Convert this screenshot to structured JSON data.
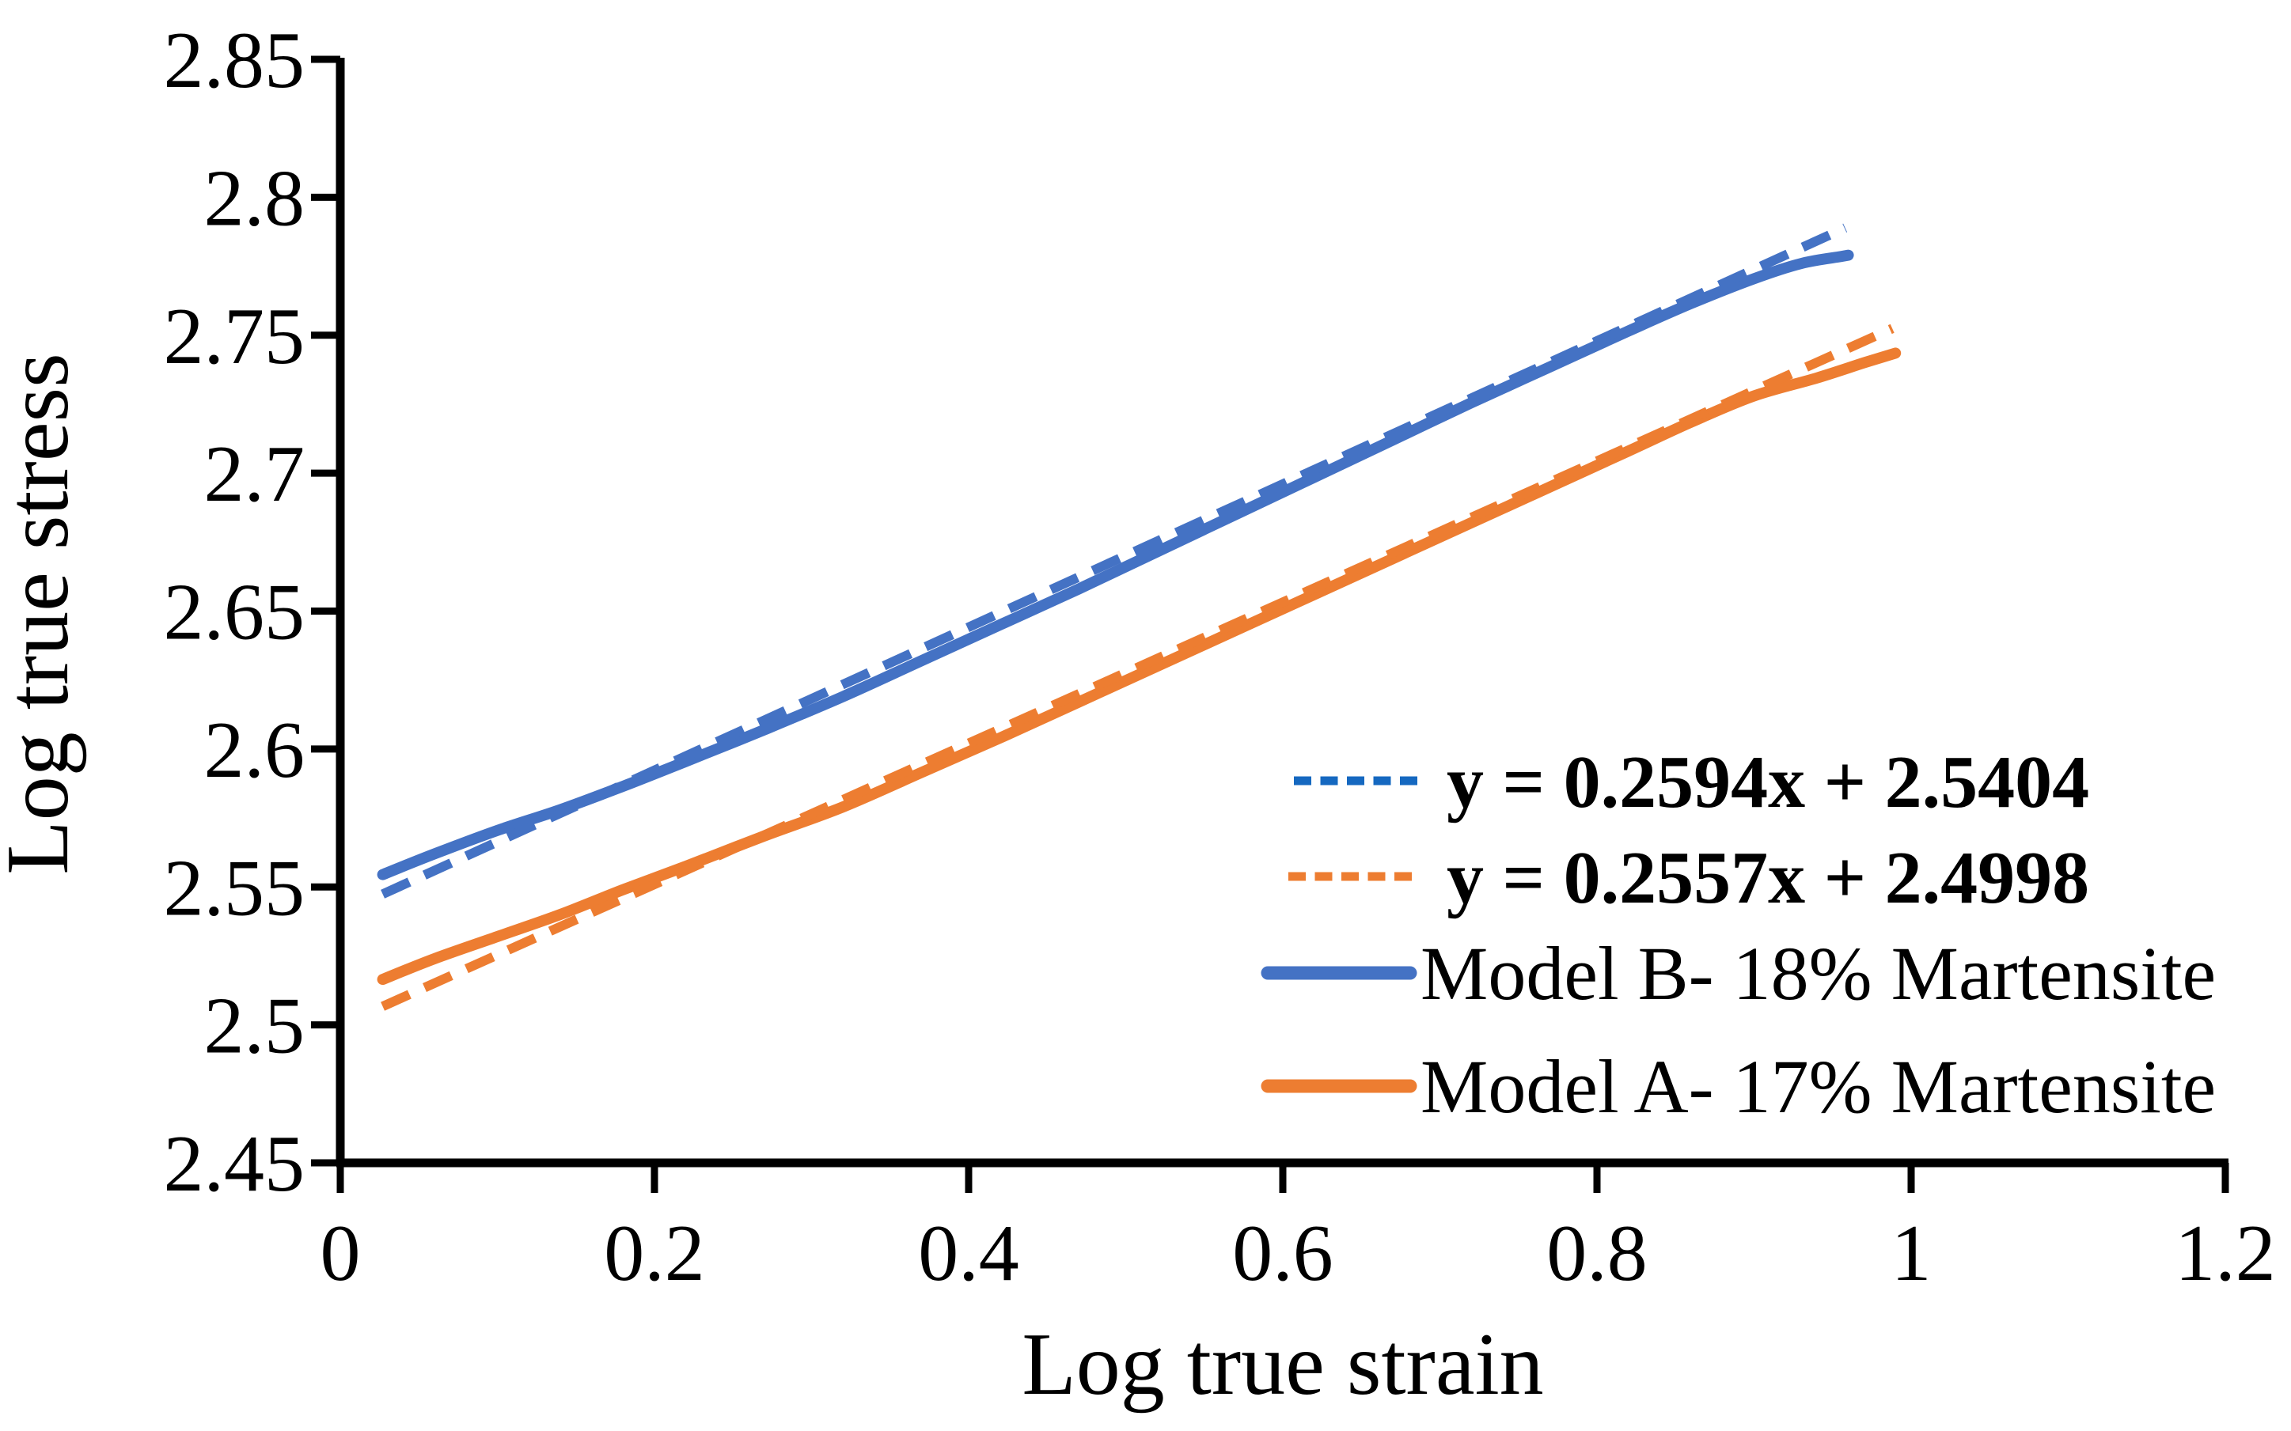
{
  "chart_data": {
    "type": "line",
    "title": "",
    "xlabel": "Log true strain",
    "ylabel": "Log true stress",
    "xlim": [
      0,
      1.2
    ],
    "ylim": [
      2.45,
      2.85
    ],
    "grid": false,
    "legend_position": "inside-lower-right",
    "x_ticks": [
      {
        "value": 0,
        "label": "0"
      },
      {
        "value": 0.2,
        "label": "0.2"
      },
      {
        "value": 0.4,
        "label": "0.4"
      },
      {
        "value": 0.6,
        "label": "0.6"
      },
      {
        "value": 0.8,
        "label": "0.8"
      },
      {
        "value": 1,
        "label": "1"
      },
      {
        "value": 1.2,
        "label": "1.2"
      }
    ],
    "y_ticks": [
      {
        "value": 2.45,
        "label": "2.45"
      },
      {
        "value": 2.5,
        "label": "2.5"
      },
      {
        "value": 2.55,
        "label": "2.55"
      },
      {
        "value": 2.6,
        "label": "2.6"
      },
      {
        "value": 2.65,
        "label": "2.65"
      },
      {
        "value": 2.7,
        "label": "2.7"
      },
      {
        "value": 2.75,
        "label": "2.75"
      },
      {
        "value": 2.8,
        "label": "2.8"
      },
      {
        "value": 2.85,
        "label": "2.85"
      }
    ],
    "series": [
      {
        "name": "Model B- 18% Martensite",
        "style": "solid",
        "color": "#4472C4",
        "points": [
          [
            0.027,
            2.5545
          ],
          [
            0.06,
            2.562
          ],
          [
            0.1,
            2.5705
          ],
          [
            0.14,
            2.578
          ],
          [
            0.18,
            2.5865
          ],
          [
            0.22,
            2.5955
          ],
          [
            0.27,
            2.607
          ],
          [
            0.32,
            2.619
          ],
          [
            0.37,
            2.632
          ],
          [
            0.42,
            2.645
          ],
          [
            0.47,
            2.658
          ],
          [
            0.52,
            2.6715
          ],
          [
            0.57,
            2.685
          ],
          [
            0.62,
            2.6985
          ],
          [
            0.67,
            2.712
          ],
          [
            0.72,
            2.7255
          ],
          [
            0.77,
            2.7385
          ],
          [
            0.82,
            2.7515
          ],
          [
            0.86,
            2.7615
          ],
          [
            0.9,
            2.7705
          ],
          [
            0.93,
            2.776
          ],
          [
            0.955,
            2.7785
          ],
          [
            0.96,
            2.779
          ]
        ]
      },
      {
        "name": "Model A- 17% Martensite",
        "style": "solid",
        "color": "#ED7D31",
        "points": [
          [
            0.027,
            2.5165
          ],
          [
            0.06,
            2.524
          ],
          [
            0.1,
            2.532
          ],
          [
            0.14,
            2.54
          ],
          [
            0.18,
            2.549
          ],
          [
            0.22,
            2.5575
          ],
          [
            0.27,
            2.5685
          ],
          [
            0.32,
            2.579
          ],
          [
            0.37,
            2.5915
          ],
          [
            0.42,
            2.604
          ],
          [
            0.47,
            2.617
          ],
          [
            0.52,
            2.63
          ],
          [
            0.57,
            2.643
          ],
          [
            0.62,
            2.656
          ],
          [
            0.67,
            2.669
          ],
          [
            0.72,
            2.682
          ],
          [
            0.77,
            2.695
          ],
          [
            0.82,
            2.708
          ],
          [
            0.86,
            2.7185
          ],
          [
            0.9,
            2.728
          ],
          [
            0.94,
            2.7345
          ],
          [
            0.97,
            2.74
          ],
          [
            0.99,
            2.7435
          ]
        ]
      }
    ],
    "trendlines": [
      {
        "label": "y = 0.2594x + 2.5404",
        "slope": 0.2594,
        "intercept": 2.5404,
        "x_start": 0.027,
        "x_end": 0.958,
        "color": "#4472C4"
      },
      {
        "label": "y = 0.2557x + 2.4998",
        "slope": 0.2557,
        "intercept": 2.4998,
        "x_start": 0.027,
        "x_end": 0.988,
        "color": "#ED7D31"
      }
    ],
    "legend": [
      {
        "label": "y = 0.2594x + 2.5404",
        "swatch": "dashed",
        "swatch_color": "#1568C0",
        "label_color": "#1568C0",
        "bold": true
      },
      {
        "label": "y = 0.2557x + 2.4998",
        "swatch": "dashed",
        "swatch_color": "#ED7D31",
        "label_color": "#ED7D31",
        "bold": true
      },
      {
        "label": "Model B- 18% Martensite",
        "swatch": "solid",
        "swatch_color": "#4472C4",
        "label_color": "#000000",
        "bold": false
      },
      {
        "label": "Model A- 17% Martensite",
        "swatch": "solid",
        "swatch_color": "#ED7D31",
        "label_color": "#000000",
        "bold": false
      }
    ],
    "axis_color": "#000000"
  }
}
